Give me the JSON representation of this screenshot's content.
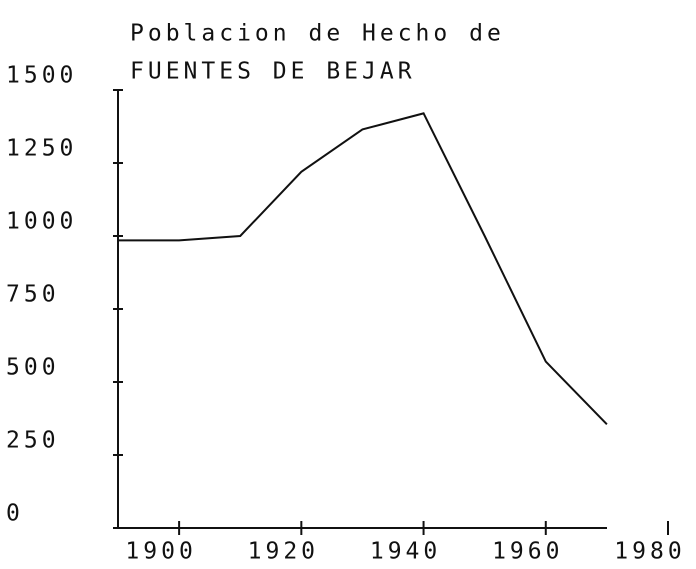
{
  "chart_data": {
    "type": "line",
    "title": [
      "Poblacion de Hecho de",
      "FUENTES DE BEJAR"
    ],
    "x": [
      1890,
      1900,
      1910,
      1920,
      1930,
      1940,
      1950,
      1960,
      1970
    ],
    "values": [
      985,
      985,
      1000,
      1220,
      1365,
      1420,
      1000,
      570,
      355
    ],
    "color": "#111111",
    "xlim": [
      1890,
      1980
    ],
    "xticks": [
      1900,
      1920,
      1940,
      1960,
      1980
    ],
    "ylim": [
      0,
      1500
    ],
    "yticks": [
      0,
      250,
      500,
      750,
      1000,
      1250,
      1500
    ],
    "grid": false
  }
}
